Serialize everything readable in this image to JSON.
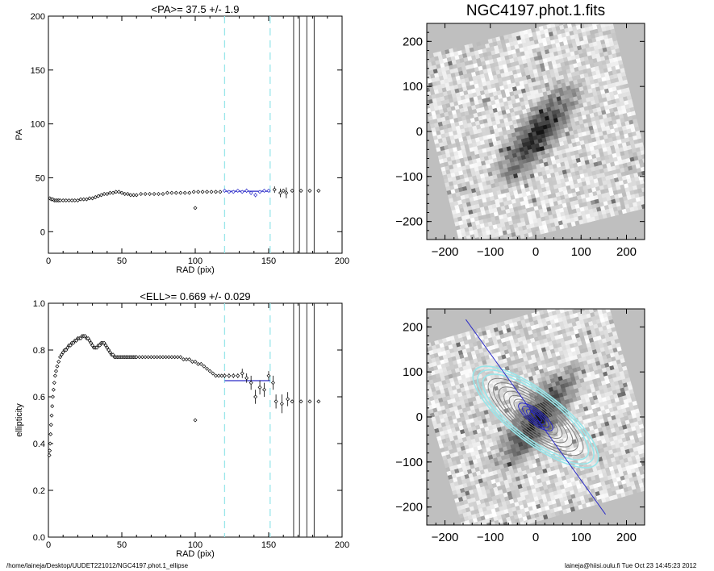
{
  "footer": {
    "path": "/home/laineja/Desktop/UUDET221012/NGC4197.phot.1_ellipse",
    "stamp": "laineja@hiisi.oulu.fi  Tue Oct 23 14:45:23 2012"
  },
  "colors": {
    "axis": "#000000",
    "cyan": "#99e6ea",
    "blue": "#2a2ac8",
    "grey": "#bfbfbf"
  },
  "chart_data": [
    {
      "type": "scatter",
      "title": "<PA>=  37.5 +/-   1.9",
      "xlabel": "RAD (pix)",
      "ylabel": "PA",
      "xlim": [
        0,
        200
      ],
      "ylim": [
        -20,
        200
      ],
      "xticks": [
        0,
        50,
        100,
        150,
        200
      ],
      "yticks": [
        0,
        50,
        100,
        150,
        200
      ],
      "grid": false,
      "vlines_dashed": [
        120,
        151
      ],
      "vlines_solid": [
        167,
        171,
        176,
        181
      ],
      "hline_fit": {
        "value": 37.5,
        "x_range": [
          120,
          151
        ]
      },
      "series": [
        {
          "style": "points",
          "x": [
            1,
            2,
            3,
            4,
            5,
            6,
            7,
            8,
            10,
            12,
            14,
            16,
            18,
            20,
            22,
            24,
            26,
            28,
            30,
            32,
            34,
            36,
            38,
            40,
            42,
            44,
            46,
            48,
            50,
            52,
            54,
            56,
            58,
            60,
            63,
            66,
            69,
            72,
            75,
            78,
            81,
            84,
            87,
            90,
            93,
            96,
            99,
            102,
            105,
            108,
            111,
            114,
            117
          ],
          "y": [
            31,
            30,
            30,
            29,
            29,
            29,
            29,
            29,
            29,
            29,
            29,
            29,
            29,
            29,
            30,
            30,
            30,
            31,
            31,
            32,
            33,
            34,
            35,
            35,
            36,
            36,
            37,
            37,
            36,
            35,
            35,
            34,
            34,
            34,
            35,
            35,
            35,
            35,
            35,
            35,
            36,
            36,
            36,
            36,
            36,
            36,
            37,
            37,
            37,
            37,
            37,
            37,
            37
          ]
        },
        {
          "style": "points",
          "x": [
            100
          ],
          "y": [
            22
          ]
        },
        {
          "style": "points-fit",
          "x": [
            120,
            123,
            126,
            129,
            132,
            135,
            138,
            141,
            144,
            147,
            150
          ],
          "y": [
            38,
            37,
            37,
            38,
            37,
            38,
            36,
            34,
            37,
            38,
            38
          ],
          "err": [
            1,
            1,
            1,
            1,
            1,
            2,
            2,
            2,
            1,
            1,
            1
          ]
        },
        {
          "style": "points-err",
          "x": [
            154,
            158,
            162
          ],
          "y": [
            39,
            36,
            36
          ],
          "err": [
            3,
            4,
            5
          ]
        },
        {
          "style": "points",
          "x": [
            160,
            166,
            172,
            178,
            184
          ],
          "y": [
            38,
            38,
            38,
            38,
            38
          ]
        }
      ]
    },
    {
      "type": "scatter",
      "title": "<ELL>= 0.669 +/-  0.029",
      "xlabel": "RAD (pix)",
      "ylabel": "ellipticity",
      "xlim": [
        0,
        200
      ],
      "ylim": [
        0.0,
        1.0
      ],
      "xticks": [
        0,
        50,
        100,
        150,
        200
      ],
      "yticks": [
        "0.0",
        "0.2",
        "0.4",
        "0.6",
        "0.8",
        "1.0"
      ],
      "grid": false,
      "vlines_dashed": [
        120,
        151
      ],
      "vlines_solid": [
        167,
        171,
        176,
        181
      ],
      "hline_fit": {
        "value": 0.669,
        "x_range": [
          120,
          151
        ]
      },
      "series": [
        {
          "style": "points",
          "x": [
            0.6,
            0.9,
            1.2,
            1.5,
            1.8,
            2.2,
            2.6,
            3.0,
            3.5,
            4.0,
            4.6,
            5.2,
            6,
            7,
            8,
            9,
            10,
            11,
            12,
            13,
            14,
            15,
            16,
            17,
            18,
            19,
            20,
            21,
            22,
            23,
            24,
            25,
            26,
            27,
            28,
            29,
            30,
            31,
            32,
            33,
            34,
            35,
            36,
            37,
            38,
            39,
            40,
            41,
            42,
            43,
            44,
            45,
            46,
            47,
            48,
            49,
            50,
            51,
            52,
            53,
            54,
            55,
            56,
            57,
            58,
            59,
            60,
            62,
            64,
            66,
            68,
            70,
            72,
            74,
            76,
            78,
            80,
            82,
            84,
            86,
            88,
            90,
            92,
            94,
            96,
            98,
            100,
            102,
            104,
            106,
            108,
            110,
            112,
            114,
            116,
            118
          ],
          "y": [
            0.35,
            0.37,
            0.4,
            0.44,
            0.48,
            0.52,
            0.56,
            0.6,
            0.63,
            0.66,
            0.69,
            0.71,
            0.73,
            0.75,
            0.77,
            0.78,
            0.79,
            0.8,
            0.8,
            0.81,
            0.82,
            0.82,
            0.83,
            0.83,
            0.84,
            0.84,
            0.85,
            0.85,
            0.85,
            0.86,
            0.86,
            0.86,
            0.85,
            0.85,
            0.84,
            0.83,
            0.82,
            0.81,
            0.81,
            0.81,
            0.82,
            0.82,
            0.83,
            0.83,
            0.83,
            0.82,
            0.81,
            0.8,
            0.79,
            0.78,
            0.78,
            0.77,
            0.77,
            0.77,
            0.77,
            0.77,
            0.77,
            0.77,
            0.77,
            0.77,
            0.77,
            0.77,
            0.77,
            0.77,
            0.77,
            0.77,
            0.77,
            0.77,
            0.77,
            0.77,
            0.77,
            0.77,
            0.77,
            0.77,
            0.77,
            0.77,
            0.77,
            0.77,
            0.77,
            0.77,
            0.77,
            0.77,
            0.76,
            0.76,
            0.76,
            0.75,
            0.75,
            0.74,
            0.74,
            0.73,
            0.72,
            0.71,
            0.7,
            0.69,
            0.69,
            0.69
          ]
        },
        {
          "style": "points",
          "x": [
            100
          ],
          "y": [
            0.5
          ]
        },
        {
          "style": "points-err",
          "x": [
            120,
            123,
            126,
            129,
            132,
            135,
            138,
            141,
            144,
            147,
            150,
            153
          ],
          "y": [
            0.69,
            0.69,
            0.69,
            0.69,
            0.7,
            0.68,
            0.66,
            0.6,
            0.64,
            0.63,
            0.69,
            0.66
          ],
          "err": [
            0.01,
            0.01,
            0.01,
            0.01,
            0.02,
            0.02,
            0.03,
            0.03,
            0.03,
            0.03,
            0.02,
            0.03
          ]
        },
        {
          "style": "points-err",
          "x": [
            155,
            159,
            163
          ],
          "y": [
            0.58,
            0.57,
            0.59
          ],
          "err": [
            0.03,
            0.04,
            0.03
          ]
        },
        {
          "style": "points",
          "x": [
            166,
            172,
            178,
            184
          ],
          "y": [
            0.58,
            0.58,
            0.58,
            0.58
          ]
        }
      ]
    },
    {
      "type": "heatmap",
      "title": "NGC4197.phot.1.fits",
      "xlim": [
        -240,
        240
      ],
      "ylim": [
        -240,
        240
      ],
      "xticks": [
        -200,
        -100,
        0,
        100,
        200
      ],
      "yticks": [
        -200,
        -100,
        0,
        100,
        200
      ],
      "galaxy_pa_deg": 37.5,
      "galaxy_ell": 0.669
    },
    {
      "type": "heatmap",
      "title": "",
      "xlim": [
        -240,
        240
      ],
      "ylim": [
        -240,
        240
      ],
      "xticks": [
        -200,
        -100,
        0,
        100,
        200
      ],
      "yticks": [
        -200,
        -100,
        0,
        100,
        200
      ],
      "galaxy_pa_deg": 37.5,
      "galaxy_ell": 0.669,
      "contours": true,
      "major_axis_line": true
    }
  ]
}
